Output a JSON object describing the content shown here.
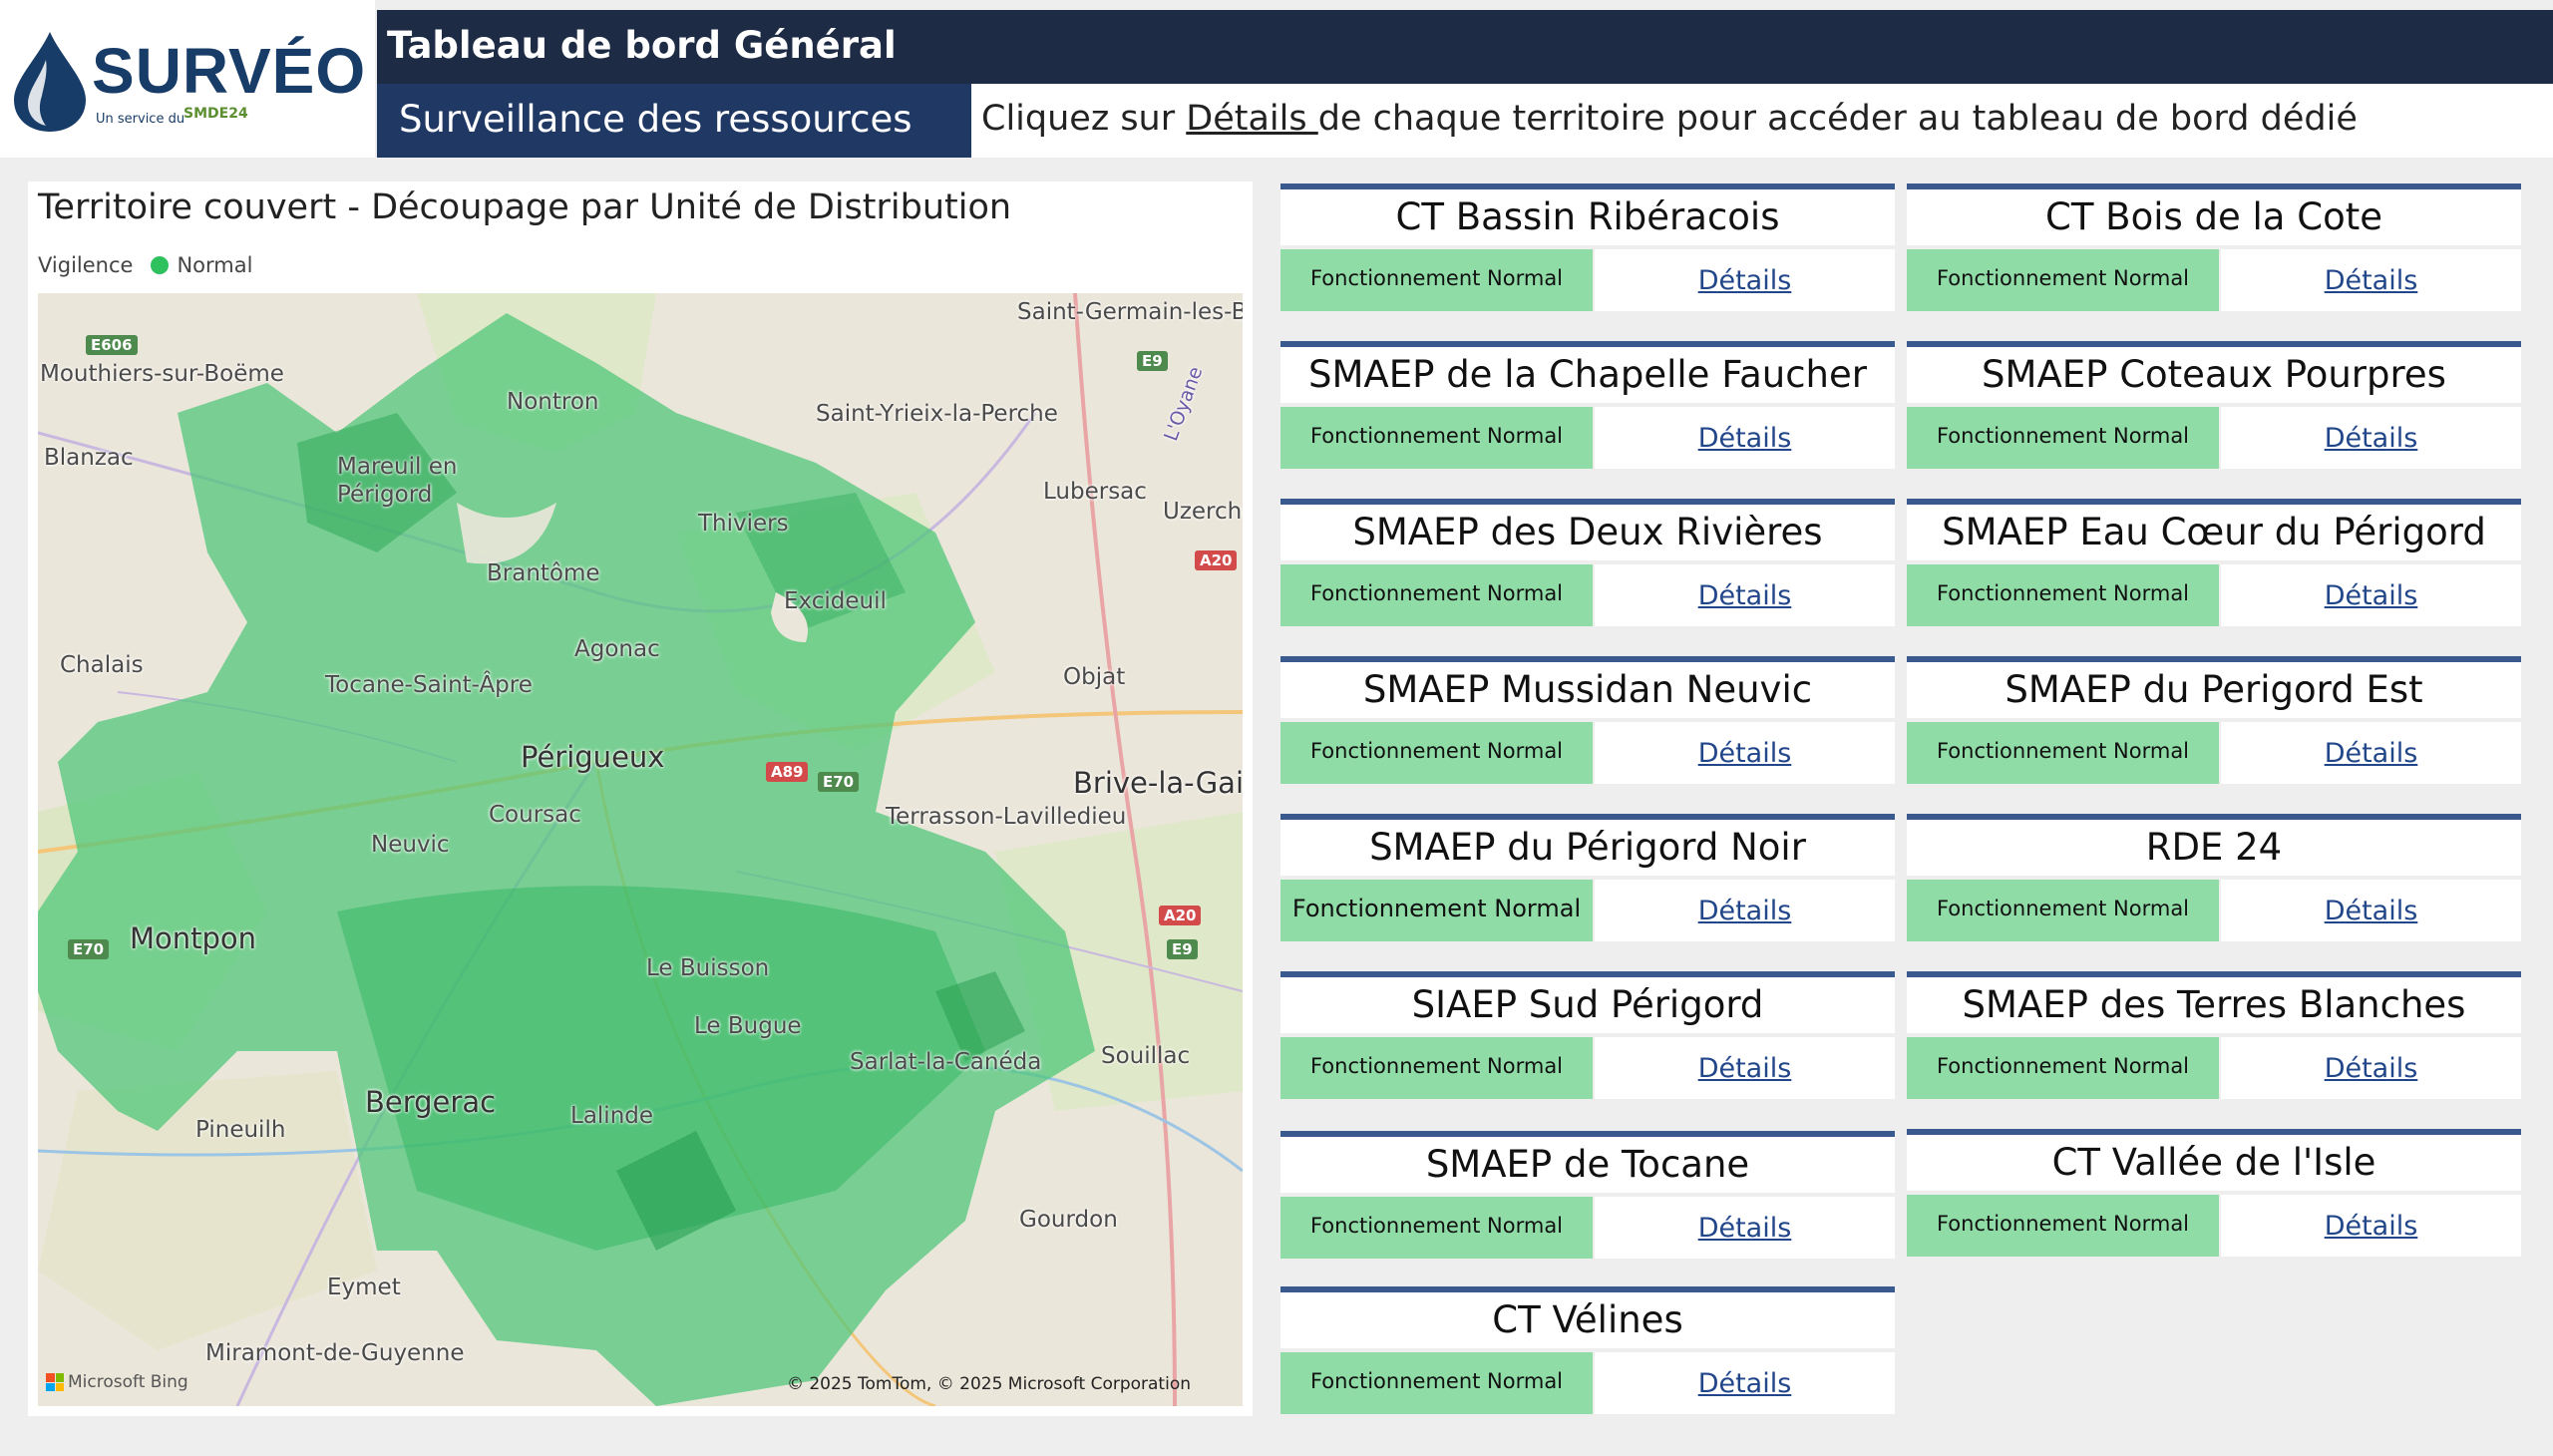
{
  "brand": {
    "name": "SURVÉO",
    "service_prefix": "Un service du",
    "partner": "SMDE24"
  },
  "header": {
    "title": "Tableau de bord Général",
    "subtitle": "Surveillance des ressources",
    "instruction_prefix": "Cliquez sur ",
    "instruction_link": "Détails ",
    "instruction_suffix": "de chaque territoire pour accéder au tableau de bord dédié"
  },
  "map_panel": {
    "title": "Territoire couvert - Découpage par Unité de Distribution",
    "legend_label": "Vigilence",
    "legend_item": "Normal",
    "legend_color": "#2ec15e",
    "attribution": "© 2025 TomTom, © 2025 Microsoft Corporation",
    "provider": "Microsoft Bing",
    "places": {
      "saint_germain": "Saint-Germain-les-B",
      "mouthiers": "Mouthiers-sur-Boëme",
      "nontron": "Nontron",
      "saint_yrieix": "Saint-Yrieix-la-Perche",
      "blanzac": "Blanzac",
      "mareuil": "Mareuil en Périgord",
      "lubersac": "Lubersac",
      "uzerche": "Uzerche",
      "thiviers": "Thiviers",
      "brantome": "Brantôme",
      "excideuil": "Excideuil",
      "agonac": "Agonac",
      "chalais": "Chalais",
      "tocane": "Tocane-Saint-Âpre",
      "objat": "Objat",
      "perigueux": "Périgueux",
      "brive": "Brive-la-Gailla",
      "coursac": "Coursac",
      "terrasson": "Terrasson-Lavilledieu",
      "neuvic": "Neuvic",
      "montpon": "Montpon",
      "le_buisson": "Le Buisson",
      "le_bugue": "Le Bugue",
      "sarlat": "Sarlat-la-Canéda",
      "souillac": "Souillac",
      "bergerac": "Bergerac",
      "pineuilh": "Pineuilh",
      "lalinde": "Lalinde",
      "gourdon": "Gourdon",
      "eymet": "Eymet",
      "miramont": "Miramont-de-Guyenne",
      "loyre": "L'Oyane"
    },
    "roads": {
      "e606": "E606",
      "e9a": "E9",
      "a20a": "A20",
      "a89": "A89",
      "e70a": "E70",
      "a20b": "A20",
      "e9b": "E9",
      "e70b": "E70"
    }
  },
  "status_text": "Fonctionnement Normal",
  "details_label": "Détails",
  "territories": [
    {
      "name": "CT Bassin Ribéracois"
    },
    {
      "name": "CT Bois de la Cote"
    },
    {
      "name": "SMAEP de la Chapelle Faucher"
    },
    {
      "name": "SMAEP Coteaux Pourpres"
    },
    {
      "name": "SMAEP des Deux Rivières"
    },
    {
      "name": "SMAEP Eau Cœur du Périgord"
    },
    {
      "name": "SMAEP Mussidan Neuvic"
    },
    {
      "name": "SMAEP du Perigord Est"
    },
    {
      "name": "SMAEP du Périgord Noir"
    },
    {
      "name": "RDE 24"
    },
    {
      "name": "SIAEP Sud Périgord"
    },
    {
      "name": "SMAEP des Terres Blanches"
    },
    {
      "name": "SMAEP de Tocane"
    },
    {
      "name": "CT Vallée de l'Isle"
    },
    {
      "name": "CT Vélines"
    }
  ],
  "colors": {
    "header_dark": "#1d2b45",
    "subtitle_blue": "#203864",
    "card_accent": "#3a5a8f",
    "status_green": "#8fdca6",
    "link_blue": "#21468a"
  }
}
